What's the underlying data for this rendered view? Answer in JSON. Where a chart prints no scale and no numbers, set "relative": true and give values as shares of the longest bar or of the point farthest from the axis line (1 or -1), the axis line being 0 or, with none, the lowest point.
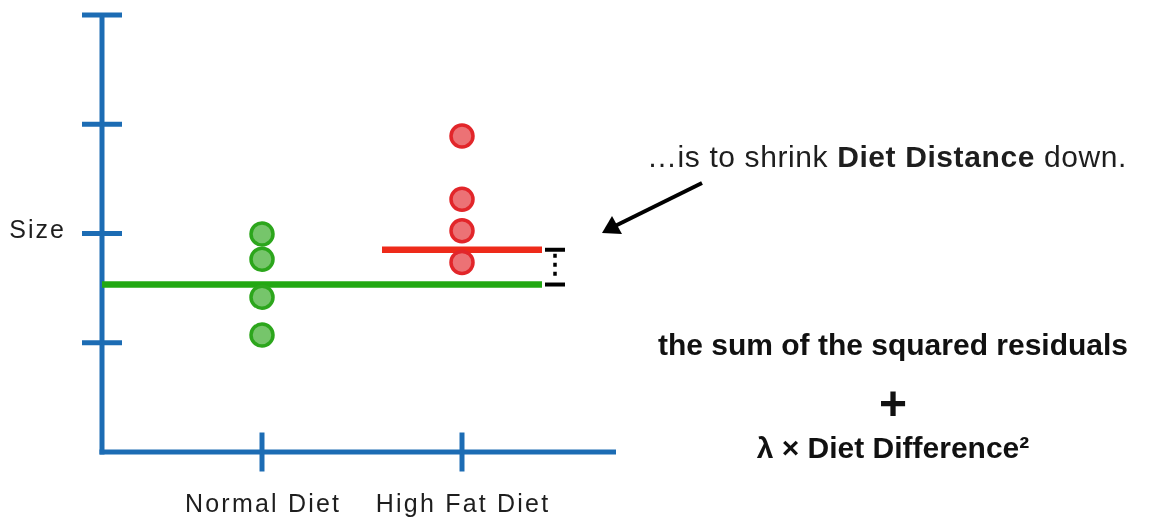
{
  "chart_data": {
    "type": "scatter",
    "ylabel": "Size",
    "relative": true,
    "categories": [
      null,
      null,
      null,
      null,
      "Normal Diet",
      null,
      null,
      null,
      null,
      "High Fat Diet",
      null,
      null
    ],
    "series": [
      {
        "color": "#2ca61c",
        "marker": "circle",
        "x": [
          "Normal Diet",
          "Normal Diet",
          "Normal Diet",
          "Normal Diet"
        ],
        "values": [
          0.69,
          0.61,
          0.49,
          0.37
        ]
      },
      {
        "color": "#e2262a",
        "marker": "circle",
        "x": [
          "High Fat Diet",
          "High Fat Diet",
          "High Fat Diet",
          "High Fat Diet"
        ],
        "values": [
          1,
          0.8,
          0.7,
          0.6
        ]
      },
      {
        "type": "line",
        "color": "#22a812",
        "values": [
          0.53,
          0.53,
          0.53,
          0.53,
          0.53,
          0.53,
          0.53,
          0.53,
          0.53,
          0.53,
          0.53,
          0.53
        ]
      },
      {
        "type": "line",
        "color": "#ee2a1a",
        "values": [
          null,
          null,
          null,
          null,
          null,
          null,
          null,
          0.64,
          0.64,
          0.64,
          0.64,
          0.64
        ]
      }
    ],
    "annotations": [
      "…is to shrink",
      "Diet Distance",
      "down.",
      "the sum of the squared residuals",
      "+",
      "λ × Diet Difference²"
    ]
  }
}
